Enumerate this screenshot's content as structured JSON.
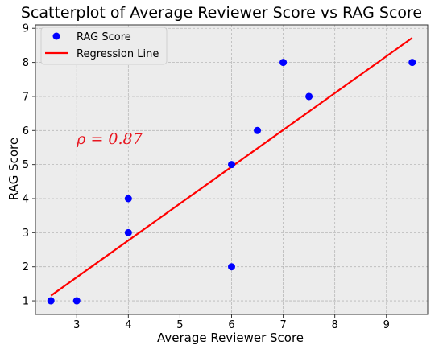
{
  "chart_data": {
    "type": "scatter",
    "title": "Scatterplot of Average Reviewer Score vs RAG Score",
    "xlabel": "Average Reviewer Score",
    "ylabel": "RAG Score",
    "xlim": [
      2.2,
      9.8
    ],
    "ylim": [
      0.6,
      9.1
    ],
    "xticks": [
      3,
      4,
      5,
      6,
      7,
      8,
      9
    ],
    "yticks": [
      1,
      2,
      3,
      4,
      5,
      6,
      7,
      8,
      9
    ],
    "grid": true,
    "legend_position": "top-left",
    "series": [
      {
        "name": "RAG Score",
        "kind": "scatter",
        "color": "#0000ff",
        "x": [
          2.5,
          3,
          4,
          4,
          6,
          6,
          6.5,
          7,
          7.5,
          9.5
        ],
        "y": [
          1,
          1,
          3,
          4,
          2,
          5,
          6,
          8,
          7,
          8
        ]
      },
      {
        "name": "Regression Line",
        "kind": "line",
        "color": "#ff0000",
        "x": [
          2.5,
          9.5
        ],
        "y": [
          1.15,
          8.72
        ]
      }
    ],
    "annotation": {
      "text": "ρ = 0.87",
      "x": 3.0,
      "y": 5.6,
      "color": "#e8141e"
    }
  },
  "colors": {
    "background": "#ffffff",
    "plot_area": "#ececec",
    "grid": "#b8b8b8",
    "spine": "#333333"
  }
}
